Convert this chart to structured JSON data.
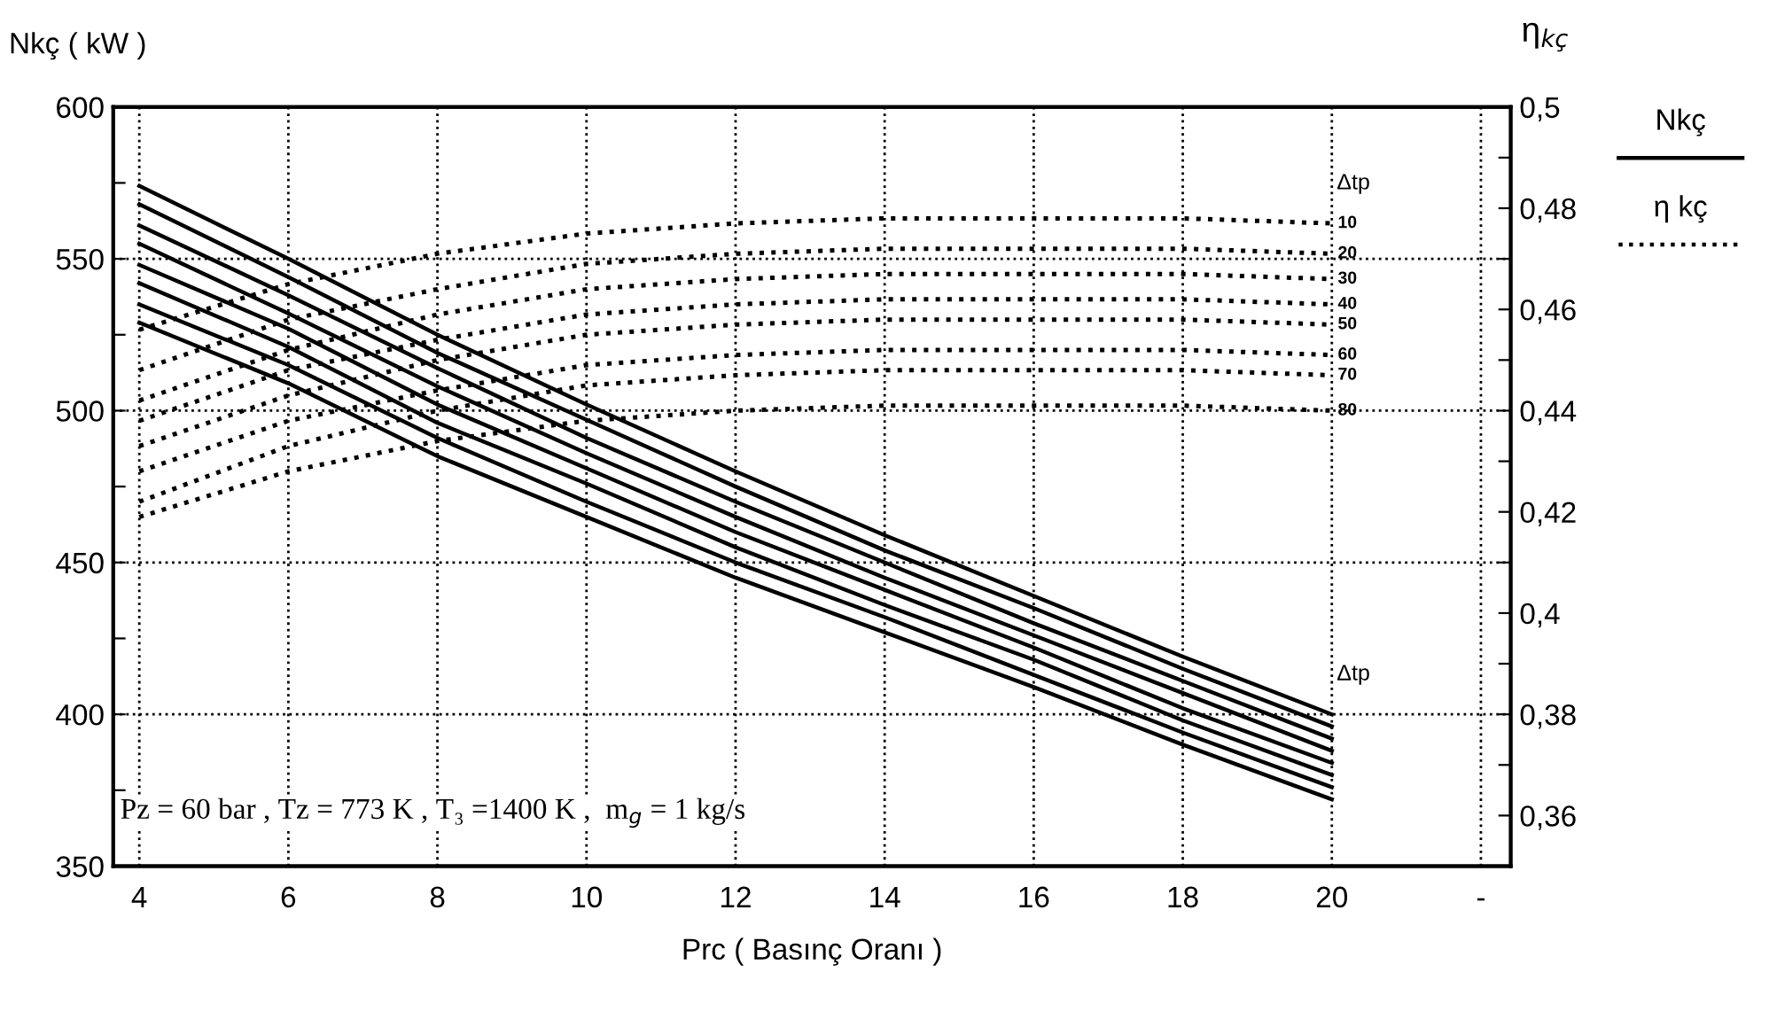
{
  "chart_data": {
    "type": "line",
    "xlabel": "Prc ( Basınç Oranı )",
    "ylabel": "Nkç ( kW )",
    "y2label": "η$_{kç}$",
    "x": [
      4,
      6,
      8,
      10,
      12,
      14,
      16,
      18,
      20
    ],
    "xlim": [
      3.65,
      22.4
    ],
    "xticks": [
      4,
      6,
      8,
      10,
      12,
      14,
      16,
      18,
      20,
      {
        "value": 22,
        "label": "-"
      }
    ],
    "ylim": [
      350,
      600
    ],
    "yticks": [
      350,
      {
        "value": 375,
        "label": null
      },
      400,
      {
        "value": 425,
        "label": null
      },
      450,
      {
        "value": 475,
        "label": null
      },
      500,
      {
        "value": 525,
        "label": null
      },
      550,
      {
        "value": 575,
        "label": null
      },
      600
    ],
    "y2lim": [
      0.35,
      0.5
    ],
    "y2ticks": [
      {
        "value": 0.36,
        "label": "0,36"
      },
      {
        "value": 0.37,
        "label": null
      },
      {
        "value": 0.38,
        "label": "0,38"
      },
      {
        "value": 0.39,
        "label": null
      },
      {
        "value": 0.4,
        "label": "0,4"
      },
      {
        "value": 0.41,
        "label": null
      },
      {
        "value": 0.42,
        "label": "0,42"
      },
      {
        "value": 0.43,
        "label": null
      },
      {
        "value": 0.44,
        "label": "0,44"
      },
      {
        "value": 0.45,
        "label": null
      },
      {
        "value": 0.46,
        "label": "0,46"
      },
      {
        "value": 0.47,
        "label": null
      },
      {
        "value": 0.48,
        "label": "0,48"
      },
      {
        "value": 0.49,
        "label": null
      },
      {
        "value": 0.5,
        "label": "0,5"
      }
    ],
    "grid": true,
    "series": [
      {
        "color": "#000000",
        "line_style": "solid",
        "values": [
          574,
          550,
          525,
          502,
          480,
          459,
          439,
          419,
          400
        ]
      },
      {
        "color": "#000000",
        "line_style": "solid",
        "values": [
          568,
          544,
          519,
          497,
          475,
          454,
          435,
          415,
          396
        ]
      },
      {
        "color": "#000000",
        "line_style": "solid",
        "values": [
          561,
          538,
          514,
          491,
          470,
          450,
          430,
          411,
          392
        ]
      },
      {
        "color": "#000000",
        "line_style": "solid",
        "values": [
          555,
          532,
          508,
          486,
          465,
          445,
          426,
          407,
          388
        ]
      },
      {
        "color": "#000000",
        "line_style": "solid",
        "values": [
          548,
          527,
          502,
          481,
          460,
          441,
          422,
          402,
          384
        ]
      },
      {
        "color": "#000000",
        "line_style": "solid",
        "values": [
          542,
          521,
          496,
          476,
          455,
          436,
          418,
          398,
          380
        ]
      },
      {
        "color": "#000000",
        "line_style": "solid",
        "values": [
          535,
          515,
          491,
          470,
          450,
          432,
          413,
          394,
          376
        ]
      },
      {
        "color": "#000000",
        "line_style": "solid",
        "values": [
          529,
          509,
          485,
          465,
          445,
          427,
          409,
          390,
          372
        ]
      },
      {
        "name": "10",
        "axis": "y2",
        "color": "#000000",
        "line_style": "dotted",
        "values": [
          0.456,
          0.465,
          0.471,
          0.475,
          0.477,
          0.478,
          0.478,
          0.478,
          0.477
        ]
      },
      {
        "name": "20",
        "axis": "y2",
        "color": "#000000",
        "line_style": "dotted",
        "values": [
          0.448,
          0.458,
          0.464,
          0.469,
          0.471,
          0.472,
          0.472,
          0.472,
          0.471
        ]
      },
      {
        "name": "30",
        "axis": "y2",
        "color": "#000000",
        "line_style": "dotted",
        "values": [
          0.442,
          0.452,
          0.459,
          0.464,
          0.466,
          0.467,
          0.467,
          0.467,
          0.466
        ]
      },
      {
        "name": "40",
        "axis": "y2",
        "color": "#000000",
        "line_style": "dotted",
        "values": [
          0.438,
          0.448,
          0.454,
          0.459,
          0.461,
          0.462,
          0.462,
          0.462,
          0.461
        ]
      },
      {
        "name": "50",
        "axis": "y2",
        "color": "#000000",
        "line_style": "dotted",
        "values": [
          0.433,
          0.443,
          0.45,
          0.455,
          0.457,
          0.458,
          0.458,
          0.458,
          0.457
        ]
      },
      {
        "name": "60",
        "axis": "y2",
        "color": "#000000",
        "line_style": "dotted",
        "values": [
          0.428,
          0.438,
          0.444,
          0.449,
          0.451,
          0.452,
          0.452,
          0.452,
          0.451
        ]
      },
      {
        "name": "70",
        "axis": "y2",
        "color": "#000000",
        "line_style": "dotted",
        "values": [
          0.422,
          0.433,
          0.44,
          0.445,
          0.447,
          0.448,
          0.448,
          0.448,
          0.447
        ]
      },
      {
        "name": "80",
        "axis": "y2",
        "color": "#000000",
        "line_style": "dotted",
        "values": [
          0.419,
          0.428,
          0.434,
          0.438,
          0.44,
          0.441,
          0.441,
          0.441,
          0.44
        ]
      }
    ],
    "annotations": [
      "Pz = 60 bar , Tz = 773 K , T₃ =1400 K ,  m$_{g}$ = 1 kg/s",
      "Nkç",
      "η kç",
      "Δtp",
      "Δtp"
    ]
  }
}
